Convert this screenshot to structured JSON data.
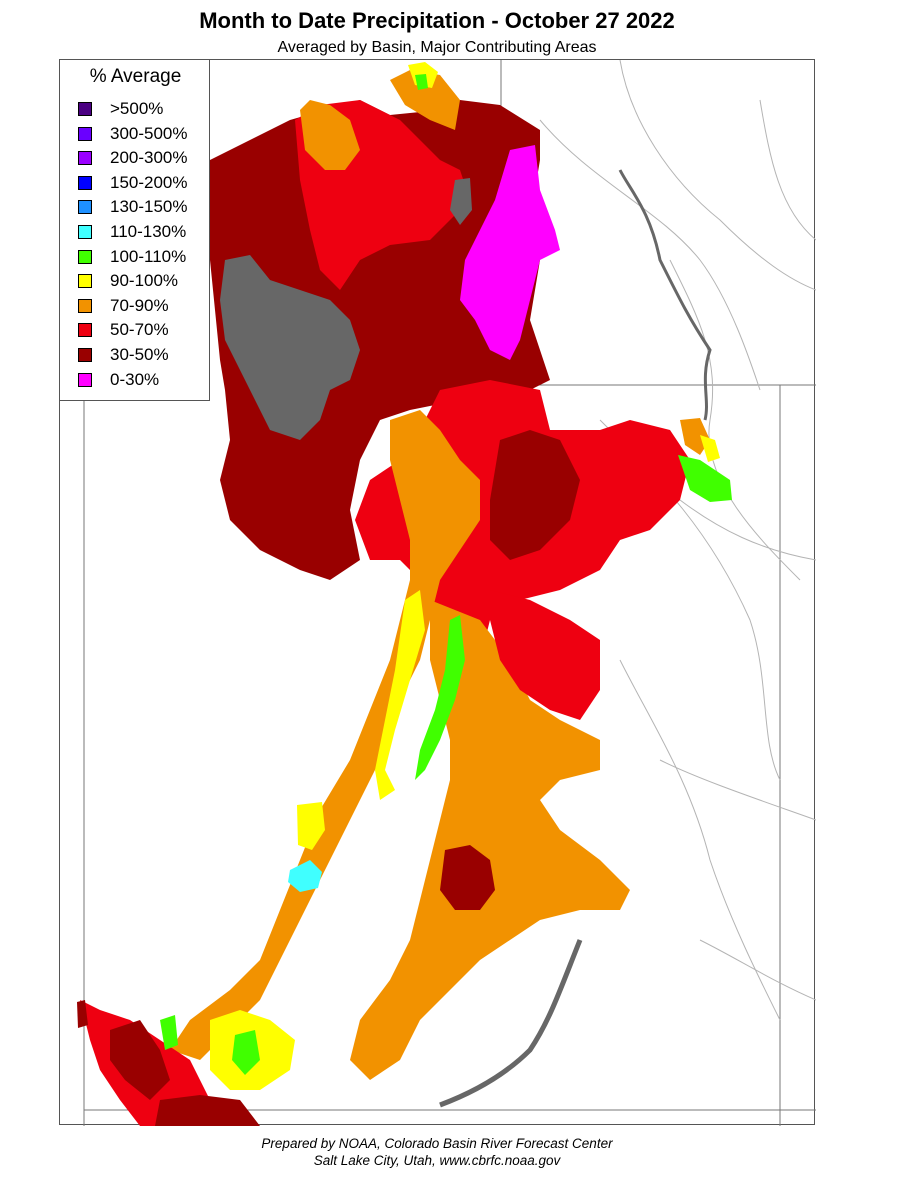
{
  "title": "Month to Date Precipitation - October 27 2022",
  "subtitle": "Averaged by Basin, Major Contributing Areas",
  "legend": {
    "title": "% Average",
    "items": [
      {
        "label": ">500%",
        "color": "#4b0082"
      },
      {
        "label": "300-500%",
        "color": "#6a00ff"
      },
      {
        "label": "200-300%",
        "color": "#9b00ff"
      },
      {
        "label": "150-200%",
        "color": "#0000ff"
      },
      {
        "label": "130-150%",
        "color": "#1e90ff"
      },
      {
        "label": "110-130%",
        "color": "#40ffff"
      },
      {
        "label": "100-110%",
        "color": "#40ff00"
      },
      {
        "label": "90-100%",
        "color": "#ffff00"
      },
      {
        "label": "70-90%",
        "color": "#f29200"
      },
      {
        "label": "50-70%",
        "color": "#ee0011"
      },
      {
        "label": "30-50%",
        "color": "#990000"
      },
      {
        "label": "0-30%",
        "color": "#ff00ff"
      }
    ]
  },
  "map_colors": {
    "no_data_gray": "#676767",
    "border_line": "#777777",
    "river_line": "#b4b4b4"
  },
  "credit": {
    "line1": "Prepared by NOAA, Colorado Basin River Forecast Center",
    "line2": "Salt Lake City, Utah, www.cbrfc.noaa.gov"
  }
}
